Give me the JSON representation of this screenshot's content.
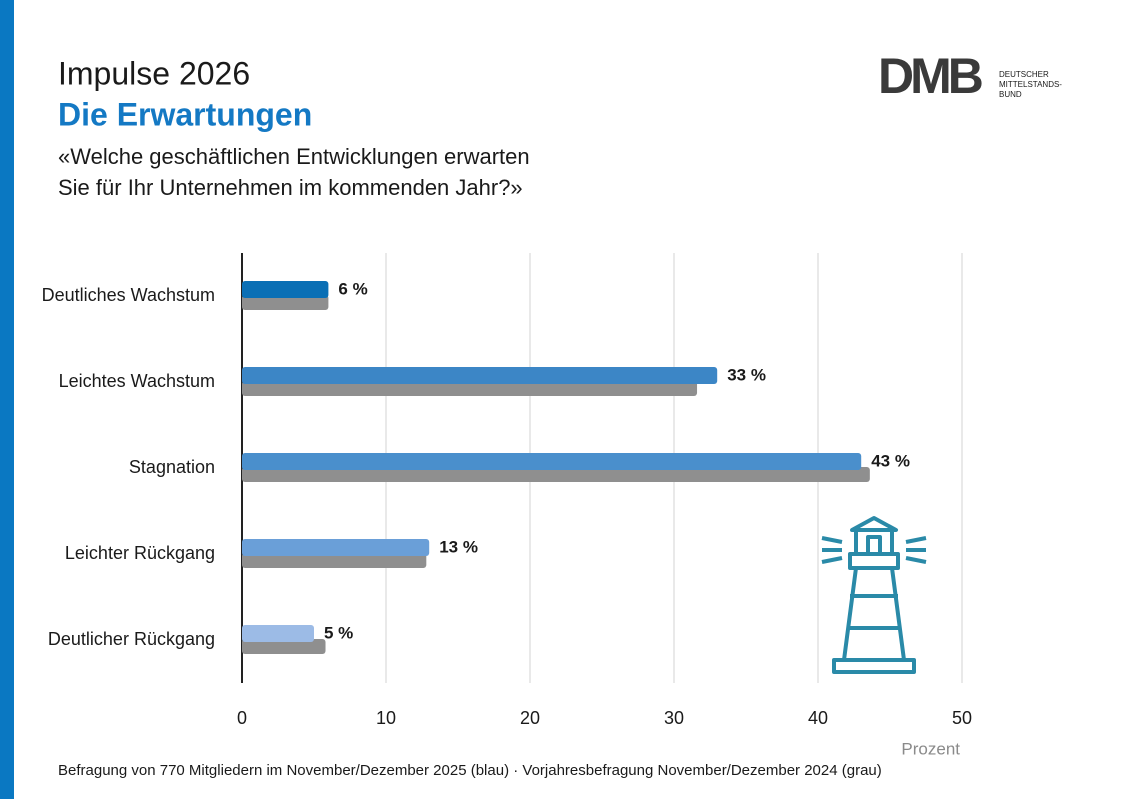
{
  "logo": {
    "text": "DMB",
    "subtext": [
      "DEUTSCHER",
      "MITTELSTANDS-",
      "BUND"
    ]
  },
  "chart_data": {
    "type": "hbar",
    "title": "Impulse 2026",
    "subtitle": "Die Erwartungen",
    "question": [
      "«Welche geschäftlichen Entwicklungen erwarten",
      "Sie für Ihr Unternehmen im kommenden Jahr?»"
    ],
    "categories": [
      "Deutliches Wachstum",
      "Leichtes Wachstum",
      "Stagnation",
      "Leichter Rückgang",
      "Deutlicher Rückgang"
    ],
    "series": [
      {
        "colors": [
          "#0a6fb5",
          "#3c86c6",
          "#4a8fcc",
          "#6a9fd8",
          "#9cbbe6"
        ],
        "values": [
          6,
          33,
          43,
          13,
          5
        ],
        "value_labels": [
          "6 %",
          "33 %",
          "43 %",
          "13 %",
          "5 %"
        ]
      },
      {
        "color": "#8f8f8f",
        "values": [
          6,
          31.6,
          43.6,
          12.8,
          5.8
        ]
      }
    ],
    "xlim": [
      0,
      50
    ],
    "xticks": [
      0,
      10,
      20,
      30,
      40,
      50
    ],
    "grid": true,
    "xlabel": "Prozent",
    "note": "Befragung von 770 Mitgliedern im November/Dezember 2025 (blau) · Vorjahresbefragung November/Dezember 2024 (grau)"
  }
}
